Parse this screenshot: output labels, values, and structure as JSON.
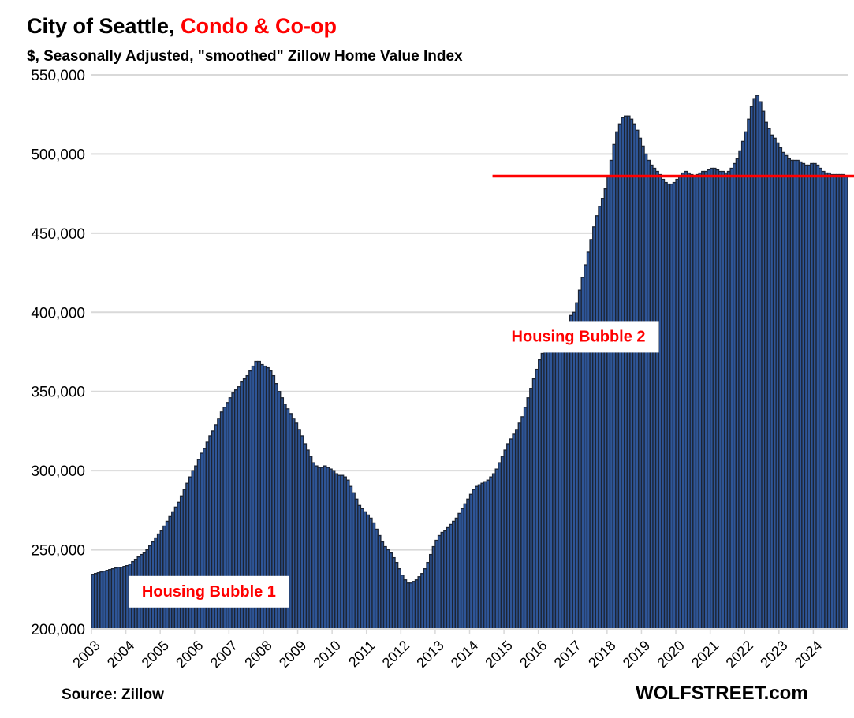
{
  "title_black": "City of Seattle, ",
  "title_red": "Condo & Co-op",
  "subtitle": "$, Seasonally Adjusted, \"smoothed\" Zillow Home Value Index",
  "source": "Source: Zillow",
  "brand": "WOLFSTREET.com",
  "colors": {
    "bar_fill": "#2e5597",
    "bar_edge": "#1c2433",
    "accent": "#ff0000",
    "grid": "#d9d9d9"
  },
  "chart_data": {
    "type": "bar",
    "title": "City of Seattle, Condo & Co-op",
    "subtitle": "$, Seasonally Adjusted, \"smoothed\" Zillow Home Value Index",
    "xlabel": "",
    "ylabel": "",
    "frequency": "monthly",
    "start": "2003-01",
    "ylim": [
      200000,
      550000
    ],
    "yticks": [
      200000,
      250000,
      300000,
      350000,
      400000,
      450000,
      500000,
      550000
    ],
    "ytick_labels": [
      "200,000",
      "250,000",
      "300,000",
      "350,000",
      "400,000",
      "450,000",
      "500,000",
      "550,000"
    ],
    "xtick_labels": [
      "2003",
      "2004",
      "2005",
      "2006",
      "2007",
      "2008",
      "2009",
      "2010",
      "2011",
      "2012",
      "2013",
      "2014",
      "2015",
      "2016",
      "2017",
      "2018",
      "2019",
      "2020",
      "2021",
      "2022",
      "2023",
      "2024"
    ],
    "grid": true,
    "reference_line": {
      "value": 486000,
      "from": "2014-09",
      "color": "#ff0000"
    },
    "annotations": [
      {
        "text": "Housing Bubble 1",
        "at": "2006-06",
        "value": 224000
      },
      {
        "text": "Housing Bubble 2",
        "at": "2017-03",
        "value": 385000
      }
    ],
    "values_thousands": [
      234.5,
      235,
      235.5,
      236,
      236.5,
      237,
      237.5,
      238,
      238.5,
      239,
      239,
      239.5,
      240,
      241,
      242.5,
      244,
      245.5,
      247,
      248,
      250,
      252.5,
      255,
      257.5,
      260,
      262,
      265,
      268,
      271,
      274,
      277,
      280,
      284,
      288,
      292,
      296,
      300,
      303,
      307,
      311,
      314,
      318,
      322,
      325,
      329,
      333,
      337,
      340,
      343,
      346,
      349,
      351,
      353,
      356,
      358,
      360,
      363,
      366,
      369,
      369,
      367,
      366,
      365,
      363,
      360,
      355,
      350,
      346,
      342,
      339,
      336,
      333,
      330,
      326,
      322,
      317,
      313,
      309,
      305,
      303,
      302,
      302,
      303,
      302,
      301,
      300,
      298,
      297,
      297,
      296,
      294,
      290,
      286,
      282,
      278,
      276,
      274,
      272,
      270,
      267,
      263,
      259,
      255,
      252,
      250,
      248,
      245,
      242,
      238,
      234,
      231,
      229,
      229,
      230,
      231,
      233,
      235,
      238,
      242,
      247,
      252,
      256,
      259,
      261,
      262,
      264,
      266,
      268,
      270,
      273,
      276,
      279,
      282,
      285,
      288,
      290,
      291,
      292,
      293,
      294,
      296,
      298,
      301,
      305,
      309,
      313,
      317,
      320,
      323,
      326,
      330,
      334,
      340,
      346,
      352,
      358,
      364,
      370,
      374,
      377,
      378,
      379,
      380,
      381,
      383,
      386,
      390,
      394,
      398,
      400,
      406,
      414,
      422,
      430,
      438,
      446,
      454,
      461,
      467,
      472,
      478,
      486,
      496,
      506,
      514,
      519,
      523,
      524,
      524,
      522,
      519,
      515,
      510,
      505,
      500,
      496,
      493,
      491,
      489,
      487,
      484,
      482,
      481,
      481,
      482,
      484,
      486,
      488,
      489,
      488,
      487,
      486,
      487,
      488,
      489,
      489,
      490,
      491,
      491,
      490,
      489,
      489,
      488,
      489,
      491,
      494,
      497,
      502,
      508,
      514,
      522,
      530,
      535,
      537,
      533,
      527,
      520,
      516,
      512,
      510,
      507,
      504,
      501,
      499,
      497,
      496,
      496,
      496,
      495,
      494,
      493,
      493,
      494,
      494,
      493,
      491,
      489,
      488,
      488,
      487,
      487,
      487,
      487,
      487,
      486
    ]
  }
}
